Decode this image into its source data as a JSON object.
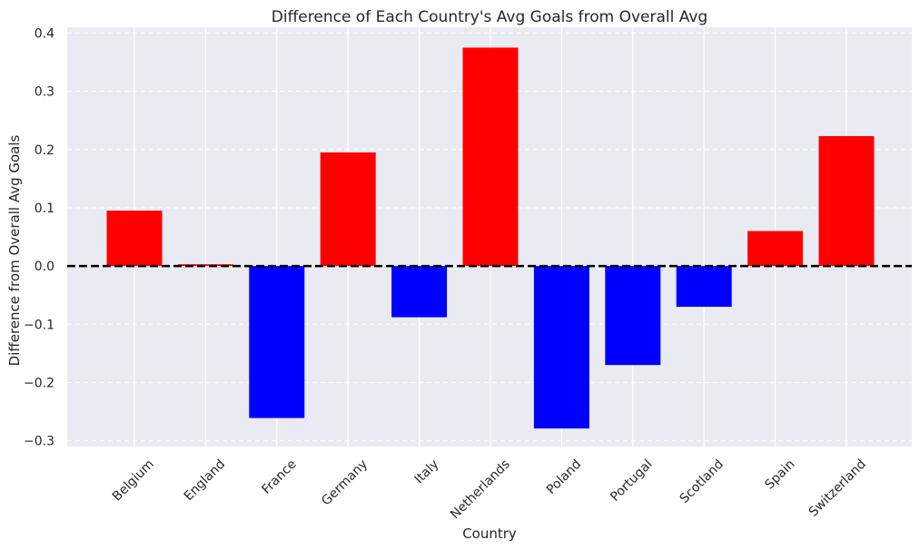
{
  "chart_data": {
    "type": "bar",
    "title": "Difference of Each Country's Avg Goals from Overall Avg",
    "xlabel": "Country",
    "ylabel": "Difference from Overall Avg Goals",
    "categories": [
      "Belgium",
      "England",
      "France",
      "Germany",
      "Italy",
      "Netherlands",
      "Poland",
      "Portugal",
      "Scotland",
      "Spain",
      "Switzerland"
    ],
    "values": [
      0.095,
      0.003,
      -0.261,
      0.195,
      -0.088,
      0.375,
      -0.279,
      -0.17,
      -0.07,
      0.06,
      0.223
    ],
    "ylim": [
      -0.31,
      0.41
    ],
    "yticks": [
      -0.3,
      -0.2,
      -0.1,
      0.0,
      0.1,
      0.2,
      0.3,
      0.4
    ],
    "ytick_labels": [
      "−0.3",
      "−0.2",
      "−0.1",
      "0.0",
      "0.1",
      "0.2",
      "0.3",
      "0.4"
    ],
    "grid": true,
    "reference_line": 0,
    "colors": {
      "positive": "#ff0000",
      "negative": "#0000ff",
      "background": "#eaeaf2",
      "grid": "#ffffff",
      "reference_line": "#000000"
    }
  }
}
